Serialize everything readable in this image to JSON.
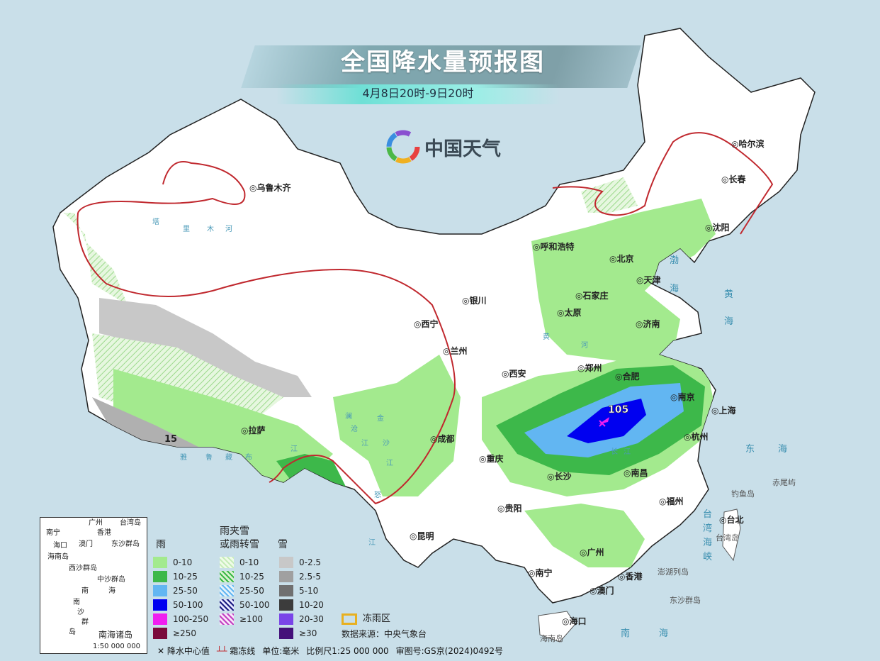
{
  "header": {
    "title": "全国降水量预报图",
    "subtitle": "4月8日20时-9日20时",
    "brand": "中国天气"
  },
  "colors": {
    "ocean": "#c9dfe9",
    "land": "#ffffff",
    "rain_0_10": "#a3ea8e",
    "rain_10_25": "#3db84a",
    "rain_25_50": "#62b6f2",
    "rain_50_100": "#0000f0",
    "rain_100_250": "#f01ef0",
    "rain_250": "#7a0a3c",
    "frost_line": "#c0282e",
    "freezing_rain": "#e8b020"
  },
  "map": {
    "cities": [
      "乌鲁木齐",
      "哈尔滨",
      "长春",
      "沈阳",
      "呼和浩特",
      "北京",
      "天津",
      "石家庄",
      "太原",
      "济南",
      "银川",
      "西宁",
      "兰州",
      "西安",
      "郑州",
      "合肥",
      "南京",
      "上海",
      "杭州",
      "拉萨",
      "成都",
      "重庆",
      "长沙",
      "南昌",
      "贵阳",
      "福州",
      "台北",
      "昆明",
      "南宁",
      "广州",
      "香港",
      "澳门",
      "海口"
    ],
    "islands": [
      "海南岛",
      "台湾岛",
      "澎湖列岛",
      "钓鱼岛",
      "赤尾屿",
      "东沙群岛"
    ],
    "seas": [
      "渤",
      "海",
      "黄",
      "海",
      "东",
      "海",
      "南",
      "海",
      "台",
      "湾",
      "海",
      "峡"
    ],
    "rivers": [
      "塔",
      "里",
      "木",
      "河",
      "黄",
      "河",
      "长",
      "江",
      "雅",
      "鲁",
      "藏",
      "布",
      "江",
      "澜",
      "沧",
      "江",
      "怒",
      "江",
      "金",
      "沙",
      "江"
    ],
    "max_value": "105",
    "tibet_value": "15"
  },
  "inset": {
    "labels": [
      "南宁",
      "广州",
      "香港",
      "澳门",
      "海口",
      "海南岛",
      "西沙群岛",
      "中沙群岛",
      "东沙群岛",
      "台湾岛",
      "南",
      "海",
      "南",
      "沙",
      "群",
      "岛"
    ],
    "title": "南海诸岛",
    "scale": "1:50 000 000"
  },
  "legend": {
    "rain": {
      "title": "雨",
      "items": [
        "0-10",
        "10-25",
        "25-50",
        "50-100",
        "100-250",
        "≥250"
      ]
    },
    "mixed": {
      "title_line1": "雨夹雪",
      "title_line2": "或雨转雪",
      "items": [
        "0-10",
        "10-25",
        "25-50",
        "50-100",
        "≥100"
      ]
    },
    "snow": {
      "title": "雪",
      "items": [
        "0-2.5",
        "2.5-5",
        "5-10",
        "10-20",
        "20-30",
        "≥30"
      ]
    },
    "freezing_rain": "冻雨区",
    "source": "数据来源：中央气象台"
  },
  "footer": {
    "center_value": "降水中心值",
    "frost_line": "霜冻线",
    "unit": "单位:毫米",
    "scale": "比例尺1:25 000 000",
    "approval": "审图号:GS京(2024)0492号"
  }
}
